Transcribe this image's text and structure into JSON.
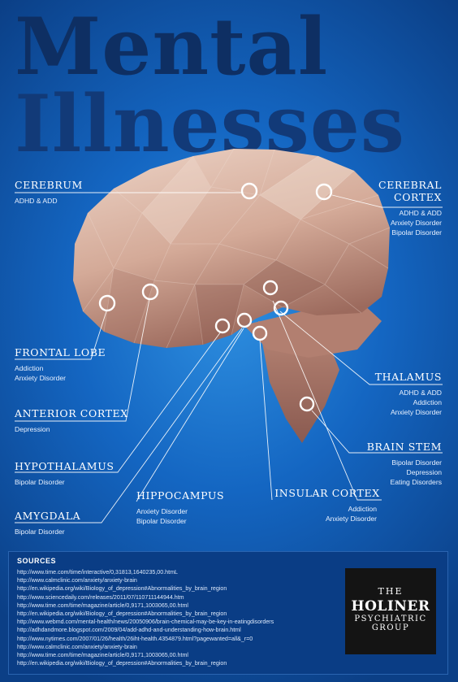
{
  "title": {
    "line1": "Mental",
    "line2": "Illnesses"
  },
  "regions": [
    {
      "name": "CEREBRUM",
      "items": [
        "ADHD & ADD"
      ]
    },
    {
      "name": "CEREBRAL CORTEX",
      "items": [
        "ADHD & ADD",
        "Anxiety Disorder",
        "Bipolar Disorder"
      ]
    },
    {
      "name": "FRONTAL LOBE",
      "items": [
        "Addiction",
        "Anxiety Disorder"
      ]
    },
    {
      "name": "THALAMUS",
      "items": [
        "ADHD & ADD",
        "Addiction",
        "Anxiety Disorder"
      ]
    },
    {
      "name": "ANTERIOR CORTEX",
      "items": [
        "Depression"
      ]
    },
    {
      "name": "BRAIN STEM",
      "items": [
        "Bipolar Disorder",
        "Depression",
        "Eating Disorders"
      ]
    },
    {
      "name": "HYPOTHALAMUS",
      "items": [
        "Bipolar Disorder"
      ]
    },
    {
      "name": "HIPPOCAMPUS",
      "items": [
        "Anxiety Disorder",
        "Bipolar Disorder"
      ]
    },
    {
      "name": "INSULAR CORTEX",
      "items": [
        "Addiction",
        "Anxiety Disorder"
      ]
    },
    {
      "name": "AMYGDALA",
      "items": [
        "Bipolar Disorder"
      ]
    }
  ],
  "sources": {
    "heading": "SOURCES",
    "links": [
      "http://www.time.com/time/interactive/0,31813,1640235,00.htmL",
      "http://www.calmclinic.com/anxiety/anxiety-brain",
      "http://en.wikipedia.org/wiki/Biology_of_depression#Abnormalities_by_brain_region",
      "http://www.sciencedaily.com/releases/2011/07/110711144944.htm",
      "http://www.time.com/time/magazine/article/0,9171,1003065,00.html",
      "http://en.wikipedia.org/wiki/Biology_of_depression#Abnormalities_by_brain_region",
      "http://www.webmd.com/mental-health/news/20050906/brain-chemical-may-be-key-in-eatingdisorders",
      "http://adhdandmore.blogspot.com/2009/04/add-adhd-and-understanding-how-brain.html",
      "http://www.nytimes.com/2007/01/26/health/26iht-health.4354879.html?pagewanted=all&_r=0",
      "http://www.calmclinic.com/anxiety/anxiety-brain",
      "http://www.time.com/time/magazine/article/0,9171,1003065,00.html",
      "http://en.wikipedia.org/wiki/Biology_of_depression#Abnormalities_by_brain_region"
    ]
  },
  "logo": {
    "the": "THE",
    "main": "HOLINER",
    "line2": "PSYCHIATRIC",
    "line3": "GROUP"
  },
  "colors": {
    "background": "#1466c2",
    "title": "#0e2f63",
    "brain": "#d9b3a2",
    "brain_shadow": "#a26f63"
  }
}
